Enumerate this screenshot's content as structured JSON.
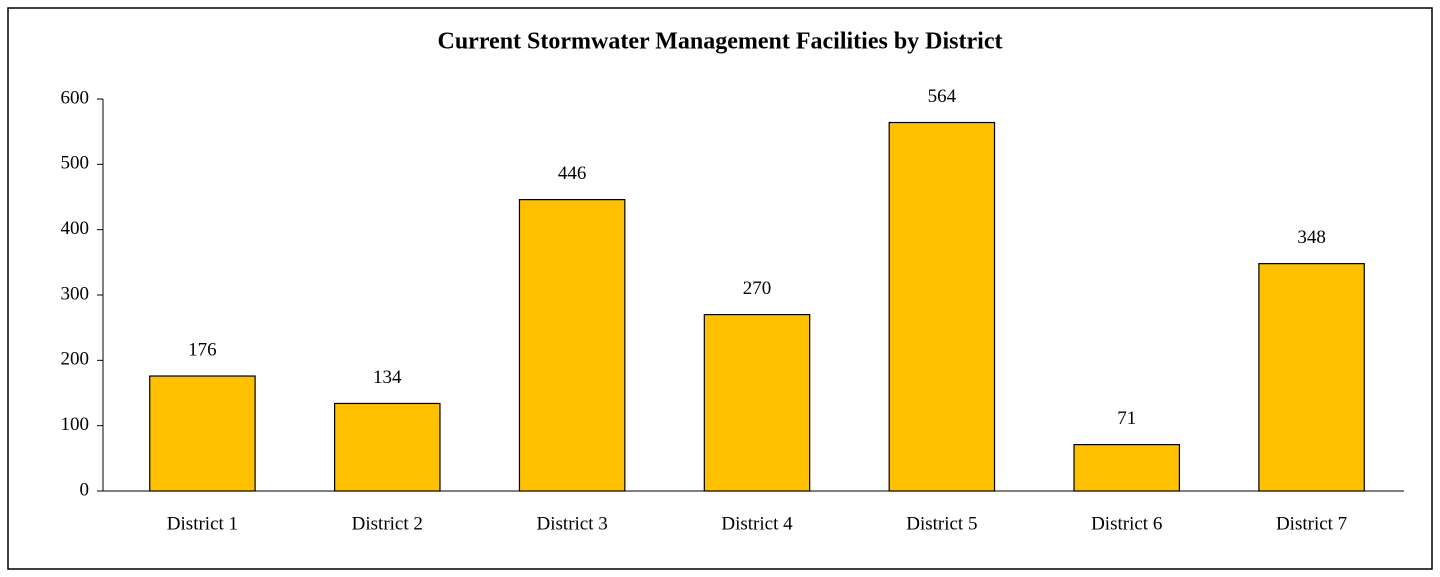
{
  "chart_data": {
    "type": "bar",
    "title": "Current Stormwater Management Facilities by District",
    "categories": [
      "District 1",
      "District 2",
      "District 3",
      "District 4",
      "District 5",
      "District 6",
      "District 7"
    ],
    "values": [
      176,
      134,
      446,
      270,
      564,
      71,
      348
    ],
    "color": "#ffc000",
    "ylim": [
      0,
      600
    ],
    "yticks": [
      0,
      100,
      200,
      300,
      400,
      500,
      600
    ],
    "grid": false
  }
}
